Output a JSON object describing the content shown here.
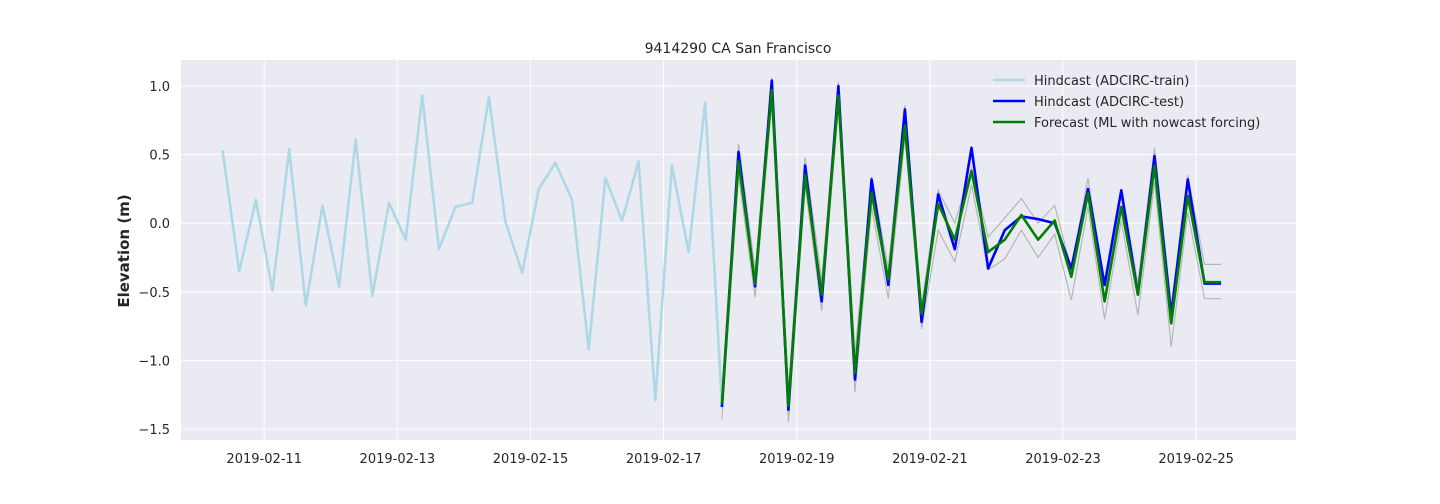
{
  "chart_data": {
    "type": "line",
    "title": "9414290 CA San Francisco",
    "xlabel": "",
    "ylabel": "Elevation (m)",
    "xlim": [
      "2019-02-09T18:00",
      "2019-02-26T12:00"
    ],
    "ylim": [
      -1.58,
      1.19
    ],
    "x_ticks": [
      "2019-02-11",
      "2019-02-13",
      "2019-02-15",
      "2019-02-17",
      "2019-02-19",
      "2019-02-21",
      "2019-02-23",
      "2019-02-25"
    ],
    "y_ticks": [
      -1.5,
      -1.0,
      -0.5,
      0.0,
      0.5,
      1.0
    ],
    "y_tick_labels": [
      "−1.5",
      "−1.0",
      "−0.5",
      "0.0",
      "0.5",
      "1.0"
    ],
    "grid": true,
    "legend_position": "top-right",
    "legend": [
      "Hindcast (ADCIRC-train)",
      "Hindcast (ADCIRC-test)",
      "Forecast (ML with nowcast forcing)"
    ],
    "colors": {
      "plot_bg": "#eaeaf2",
      "grid": "#ffffff",
      "train": "#add8e6",
      "test": "#0000ff",
      "forecast": "#008000",
      "band": "#a9a9a9"
    },
    "series": [
      {
        "name": "Hindcast (ADCIRC-train)",
        "x": [
          "2019-02-10T09:00",
          "2019-02-10T15:00",
          "2019-02-10T21:00",
          "2019-02-11T03:00",
          "2019-02-11T09:00",
          "2019-02-11T15:00",
          "2019-02-11T21:00",
          "2019-02-12T03:00",
          "2019-02-12T09:00",
          "2019-02-12T15:00",
          "2019-02-12T21:00",
          "2019-02-13T03:00",
          "2019-02-13T09:00",
          "2019-02-13T15:00",
          "2019-02-13T21:00",
          "2019-02-14T03:00",
          "2019-02-14T09:00",
          "2019-02-14T15:00",
          "2019-02-14T21:00",
          "2019-02-15T03:00",
          "2019-02-15T09:00",
          "2019-02-15T15:00",
          "2019-02-15T21:00",
          "2019-02-16T03:00",
          "2019-02-16T09:00",
          "2019-02-16T15:00",
          "2019-02-16T21:00",
          "2019-02-17T03:00",
          "2019-02-17T09:00",
          "2019-02-17T15:00",
          "2019-02-17T21:00"
        ],
        "y": [
          0.53,
          -0.35,
          0.17,
          -0.49,
          0.54,
          -0.6,
          0.13,
          -0.46,
          0.61,
          -0.53,
          0.15,
          -0.12,
          0.93,
          -0.19,
          0.12,
          0.15,
          0.92,
          0.01,
          -0.36,
          0.25,
          0.44,
          0.17,
          -0.92,
          0.33,
          0.02,
          0.45,
          -1.29,
          0.42,
          -0.21,
          0.88,
          -1.32
        ]
      },
      {
        "name": "Hindcast (ADCIRC-test)",
        "x": [
          "2019-02-17T21:00",
          "2019-02-18T03:00",
          "2019-02-18T09:00",
          "2019-02-18T15:00",
          "2019-02-18T21:00",
          "2019-02-19T03:00",
          "2019-02-19T09:00",
          "2019-02-19T15:00",
          "2019-02-19T21:00",
          "2019-02-20T03:00",
          "2019-02-20T09:00",
          "2019-02-20T15:00",
          "2019-02-20T21:00",
          "2019-02-21T03:00",
          "2019-02-21T09:00",
          "2019-02-21T15:00",
          "2019-02-21T21:00",
          "2019-02-22T03:00",
          "2019-02-22T09:00",
          "2019-02-22T15:00",
          "2019-02-22T21:00",
          "2019-02-23T03:00",
          "2019-02-23T09:00",
          "2019-02-23T15:00",
          "2019-02-23T21:00",
          "2019-02-24T03:00",
          "2019-02-24T09:00",
          "2019-02-24T15:00",
          "2019-02-24T21:00",
          "2019-02-25T03:00",
          "2019-02-25T09:00"
        ],
        "y": [
          -1.34,
          0.52,
          -0.46,
          1.04,
          -1.36,
          0.42,
          -0.57,
          1.0,
          -1.14,
          0.32,
          -0.45,
          0.83,
          -0.72,
          0.21,
          -0.19,
          0.55,
          -0.33,
          -0.05,
          0.05,
          0.03,
          0.0,
          -0.33,
          0.25,
          -0.45,
          0.24,
          -0.52,
          0.49,
          -0.67,
          0.32,
          -0.44,
          -0.44
        ]
      },
      {
        "name": "Forecast (ML with nowcast forcing)",
        "x": [
          "2019-02-17T21:00",
          "2019-02-18T03:00",
          "2019-02-18T09:00",
          "2019-02-18T15:00",
          "2019-02-18T21:00",
          "2019-02-19T03:00",
          "2019-02-19T09:00",
          "2019-02-19T15:00",
          "2019-02-19T21:00",
          "2019-02-20T03:00",
          "2019-02-20T09:00",
          "2019-02-20T15:00",
          "2019-02-20T21:00",
          "2019-02-21T03:00",
          "2019-02-21T09:00",
          "2019-02-21T15:00",
          "2019-02-21T21:00",
          "2019-02-22T03:00",
          "2019-02-22T09:00",
          "2019-02-22T15:00",
          "2019-02-22T21:00",
          "2019-02-23T03:00",
          "2019-02-23T09:00",
          "2019-02-23T15:00",
          "2019-02-23T21:00",
          "2019-02-24T03:00",
          "2019-02-24T09:00",
          "2019-02-24T15:00",
          "2019-02-24T21:00",
          "2019-02-25T03:00",
          "2019-02-25T09:00"
        ],
        "y": [
          -1.32,
          0.45,
          -0.44,
          0.97,
          -1.33,
          0.35,
          -0.52,
          0.93,
          -1.09,
          0.22,
          -0.41,
          0.71,
          -0.66,
          0.14,
          -0.12,
          0.38,
          -0.21,
          -0.12,
          0.06,
          -0.12,
          0.02,
          -0.39,
          0.22,
          -0.57,
          0.12,
          -0.52,
          0.42,
          -0.73,
          0.2,
          -0.43,
          -0.43
        ]
      }
    ],
    "band": {
      "x": [
        "2019-02-17T21:00",
        "2019-02-18T03:00",
        "2019-02-18T09:00",
        "2019-02-18T15:00",
        "2019-02-18T21:00",
        "2019-02-19T03:00",
        "2019-02-19T09:00",
        "2019-02-19T15:00",
        "2019-02-19T21:00",
        "2019-02-20T03:00",
        "2019-02-20T09:00",
        "2019-02-20T15:00",
        "2019-02-20T21:00",
        "2019-02-21T03:00",
        "2019-02-21T09:00",
        "2019-02-21T15:00",
        "2019-02-21T21:00",
        "2019-02-22T03:00",
        "2019-02-22T09:00",
        "2019-02-22T15:00",
        "2019-02-22T21:00",
        "2019-02-23T03:00",
        "2019-02-23T09:00",
        "2019-02-23T15:00",
        "2019-02-23T21:00",
        "2019-02-24T03:00",
        "2019-02-24T09:00",
        "2019-02-24T15:00",
        "2019-02-24T21:00",
        "2019-02-25T03:00",
        "2019-02-25T09:00"
      ],
      "upper": [
        -1.22,
        0.58,
        -0.34,
        1.06,
        -1.21,
        0.48,
        -0.42,
        1.03,
        -0.95,
        0.34,
        -0.33,
        0.86,
        -0.6,
        0.24,
        0.0,
        0.4,
        -0.1,
        0.04,
        0.18,
        0.0,
        0.13,
        -0.33,
        0.33,
        -0.45,
        0.25,
        -0.44,
        0.55,
        -0.6,
        0.35,
        -0.3,
        -0.3
      ],
      "lower": [
        -1.43,
        0.35,
        -0.54,
        0.88,
        -1.45,
        0.28,
        -0.64,
        0.85,
        -1.23,
        0.12,
        -0.55,
        0.63,
        -0.77,
        -0.05,
        -0.28,
        0.28,
        -0.34,
        -0.26,
        -0.05,
        -0.25,
        -0.08,
        -0.56,
        0.12,
        -0.7,
        0.02,
        -0.67,
        0.3,
        -0.9,
        0.08,
        -0.55,
        -0.55
      ]
    }
  }
}
